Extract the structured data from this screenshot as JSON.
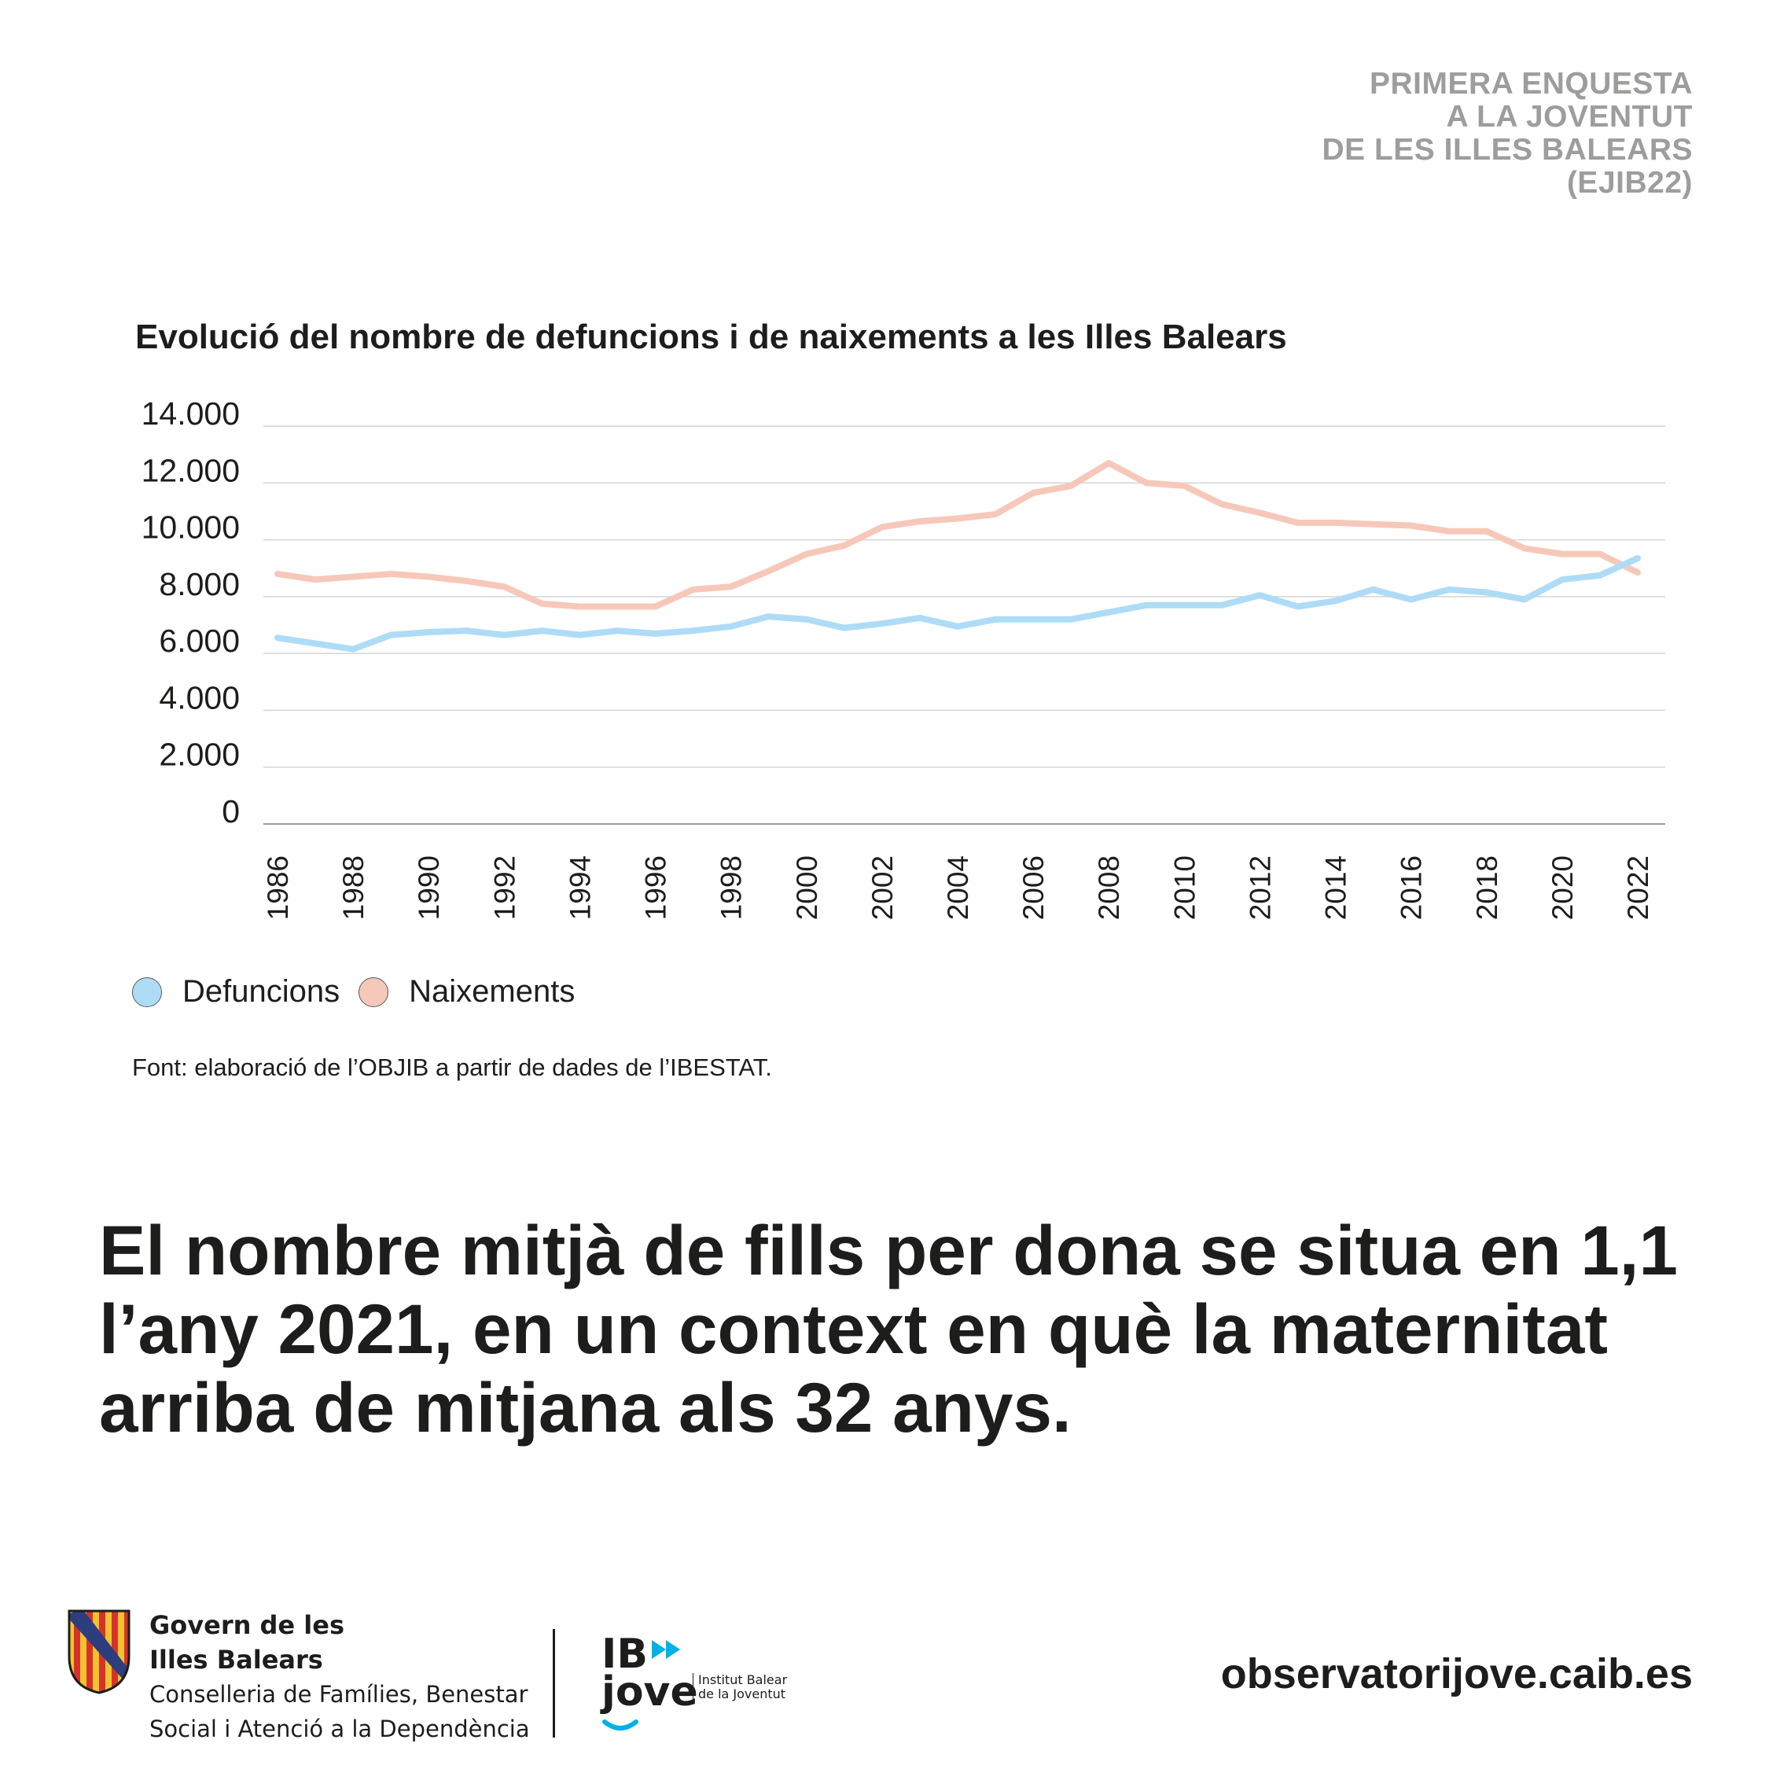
{
  "header": {
    "lines": [
      "PRIMERA ENQUESTA",
      "A LA JOVENTUT",
      "DE LES ILLES BALEARS",
      "(EJIB22)"
    ]
  },
  "chart_data": {
    "type": "line",
    "title": "Evolució del nombre de defuncions i de naixements a les Illes Balears",
    "xlabel": "",
    "ylabel": "",
    "x": [
      1986,
      1987,
      1988,
      1989,
      1990,
      1991,
      1992,
      1993,
      1994,
      1995,
      1996,
      1997,
      1998,
      1999,
      2000,
      2001,
      2002,
      2003,
      2004,
      2005,
      2006,
      2007,
      2008,
      2009,
      2010,
      2011,
      2012,
      2013,
      2014,
      2015,
      2016,
      2017,
      2018,
      2019,
      2020,
      2021,
      2022
    ],
    "x_tick_labels": [
      "1986",
      "1988",
      "1990",
      "1992",
      "1994",
      "1996",
      "1998",
      "2000",
      "2002",
      "2004",
      "2006",
      "2008",
      "2010",
      "2012",
      "2014",
      "2016",
      "2018",
      "2020",
      "2022"
    ],
    "ylim": [
      0,
      14000
    ],
    "y_tick_labels": [
      "0",
      "2.000",
      "4.000",
      "6.000",
      "8.000",
      "10.000",
      "12.000",
      "14.000"
    ],
    "grid": true,
    "legend_position": "bottom-left",
    "series": [
      {
        "name": "Defuncions",
        "color": "#aedcf6",
        "values": [
          6550,
          6350,
          6150,
          6650,
          6750,
          6800,
          6650,
          6800,
          6650,
          6800,
          6700,
          6800,
          6950,
          7300,
          7200,
          6900,
          7050,
          7250,
          6950,
          7200,
          7200,
          7200,
          7450,
          7700,
          7700,
          7700,
          8050,
          7650,
          7850,
          8250,
          7900,
          8250,
          8150,
          7900,
          8600,
          8750,
          9350
        ]
      },
      {
        "name": "Naixements",
        "color": "#f6c8b9",
        "values": [
          8800,
          8600,
          8700,
          8800,
          8700,
          8550,
          8350,
          7750,
          7650,
          7650,
          7650,
          8250,
          8350,
          8900,
          9500,
          9800,
          10450,
          10650,
          10750,
          10900,
          11650,
          11900,
          12700,
          12000,
          11900,
          11250,
          10950,
          10600,
          10600,
          10550,
          10500,
          10300,
          10300,
          9700,
          9500,
          9500,
          8850
        ]
      }
    ]
  },
  "legend": {
    "items": [
      {
        "label": "Defuncions",
        "color": "#aedcf6"
      },
      {
        "label": "Naixements",
        "color": "#f6c8b9"
      }
    ]
  },
  "source": "Font: elaboració de l’OBJIB a partir de dades de l’IBESTAT.",
  "headline": {
    "lines": [
      "El nombre mitjà de fills per dona se situa en 1,1",
      "l’any 2021, en un context en què la maternitat",
      "arriba de mitjana als 32 anys."
    ]
  },
  "footer": {
    "govern_name_line1": "Govern de les",
    "govern_name_line2": "Illes Balears",
    "govern_dept_line1": "Conselleria de Famílies, Benestar",
    "govern_dept_line2": "Social i Atenció a la Dependència",
    "ib_line1": "IB",
    "ib_line2": "jove",
    "ib_inst_line1": "Institut Balear",
    "ib_inst_line2": "de la Joventut",
    "website": "observatorijove.caib.es",
    "colors": {
      "shield_red": "#d6322b",
      "shield_gold": "#f2c230",
      "shield_blue": "#2c3e7e",
      "ib_accent": "#00b1e8"
    }
  }
}
